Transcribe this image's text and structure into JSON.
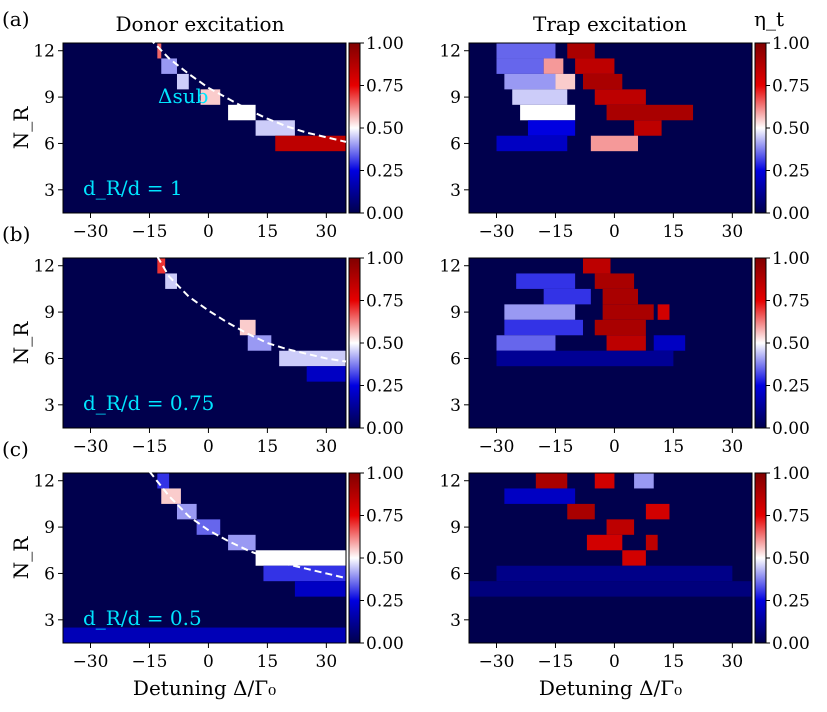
{
  "chart_data": {
    "type": "heatmap",
    "column_titles": [
      "Donor excitation",
      "Trap excitation"
    ],
    "xlabel": "Detuning Δ/Γ₀",
    "ylabel": "N_R",
    "colorbar_label": "η_t",
    "x_ticks": [
      -30,
      -15,
      0,
      15,
      30
    ],
    "xlim": [
      -37,
      35
    ],
    "y_ticks": [
      3,
      6,
      9,
      12
    ],
    "ylim": [
      1.5,
      12.5
    ],
    "colorbar": {
      "range": [
        0,
        1
      ],
      "ticks": [
        "0.00",
        "0.25",
        "0.50",
        "0.75",
        "1.00"
      ],
      "colormap": "seismic"
    },
    "curve_label": "Δsub",
    "panels": [
      {
        "label": "(a)",
        "condition": "d_R/d = 1",
        "donor": {
          "subradiant_curve": [
            [
              -15,
              12.8
            ],
            [
              -10,
              11.5
            ],
            [
              -5,
              10.5
            ],
            [
              0,
              9.6
            ],
            [
              5,
              8.9
            ],
            [
              10,
              8.2
            ],
            [
              15,
              7.6
            ],
            [
              20,
              7.1
            ],
            [
              25,
              6.7
            ],
            [
              30,
              6.4
            ],
            [
              35,
              6.1
            ]
          ],
          "features": [
            {
              "N": 12,
              "x0": -13,
              "x1": -12,
              "v": 0.65
            },
            {
              "N": 11,
              "x0": -12,
              "x1": -8,
              "v": 0.4
            },
            {
              "N": 10,
              "x0": -8,
              "x1": -5,
              "v": 0.45
            },
            {
              "N": 9,
              "x0": -2,
              "x1": 3,
              "v": 0.55
            },
            {
              "N": 8,
              "x0": 5,
              "x1": 12,
              "v": 0.5
            },
            {
              "N": 7,
              "x0": 12,
              "x1": 22,
              "v": 0.45
            },
            {
              "N": 6,
              "x0": 17,
              "x1": 35,
              "v": 0.85
            }
          ]
        },
        "trap": {
          "features": [
            {
              "N": 12,
              "x0": -30,
              "x1": -15,
              "v": 0.35
            },
            {
              "N": 12,
              "x0": -12,
              "x1": -5,
              "v": 0.9
            },
            {
              "N": 11,
              "x0": -30,
              "x1": -18,
              "v": 0.35
            },
            {
              "N": 11,
              "x0": -18,
              "x1": -13,
              "v": 0.6
            },
            {
              "N": 11,
              "x0": -10,
              "x1": 0,
              "v": 0.85
            },
            {
              "N": 10,
              "x0": -28,
              "x1": -15,
              "v": 0.4
            },
            {
              "N": 10,
              "x0": -15,
              "x1": -10,
              "v": 0.55
            },
            {
              "N": 10,
              "x0": -8,
              "x1": 2,
              "v": 0.9
            },
            {
              "N": 9,
              "x0": -26,
              "x1": -12,
              "v": 0.45
            },
            {
              "N": 9,
              "x0": -5,
              "x1": 8,
              "v": 0.85
            },
            {
              "N": 8,
              "x0": -24,
              "x1": -10,
              "v": 0.5
            },
            {
              "N": 8,
              "x0": -2,
              "x1": 20,
              "v": 0.9
            },
            {
              "N": 7,
              "x0": -22,
              "x1": -10,
              "v": 0.25
            },
            {
              "N": 7,
              "x0": 5,
              "x1": 12,
              "v": 0.85
            },
            {
              "N": 6,
              "x0": -30,
              "x1": -12,
              "v": 0.2
            },
            {
              "N": 6,
              "x0": -6,
              "x1": 6,
              "v": 0.6
            }
          ]
        }
      },
      {
        "label": "(b)",
        "condition": "d_R/d = 0.75",
        "donor": {
          "subradiant_curve": [
            [
              -13,
              12.6
            ],
            [
              -10,
              11.3
            ],
            [
              -5,
              10.0
            ],
            [
              0,
              9.1
            ],
            [
              5,
              8.3
            ],
            [
              10,
              7.6
            ],
            [
              15,
              7.0
            ],
            [
              20,
              6.6
            ],
            [
              25,
              6.3
            ],
            [
              30,
              6.0
            ],
            [
              35,
              5.8
            ]
          ],
          "features": [
            {
              "N": 12,
              "x0": -13,
              "x1": -11,
              "v": 0.7
            },
            {
              "N": 11,
              "x0": -11,
              "x1": -8,
              "v": 0.45
            },
            {
              "N": 8,
              "x0": 8,
              "x1": 12,
              "v": 0.55
            },
            {
              "N": 7,
              "x0": 10,
              "x1": 16,
              "v": 0.4
            },
            {
              "N": 6,
              "x0": 18,
              "x1": 35,
              "v": 0.45
            },
            {
              "N": 5,
              "x0": 25,
              "x1": 35,
              "v": 0.2
            }
          ]
        },
        "trap": {
          "features": [
            {
              "N": 12,
              "x0": -8,
              "x1": -1,
              "v": 0.85
            },
            {
              "N": 11,
              "x0": -25,
              "x1": -10,
              "v": 0.3
            },
            {
              "N": 11,
              "x0": -5,
              "x1": 5,
              "v": 0.9
            },
            {
              "N": 10,
              "x0": -18,
              "x1": -6,
              "v": 0.3
            },
            {
              "N": 10,
              "x0": -3,
              "x1": 6,
              "v": 0.9
            },
            {
              "N": 9,
              "x0": -28,
              "x1": -10,
              "v": 0.4
            },
            {
              "N": 9,
              "x0": -3,
              "x1": 10,
              "v": 0.9
            },
            {
              "N": 9,
              "x0": 11,
              "x1": 14,
              "v": 0.8
            },
            {
              "N": 8,
              "x0": -28,
              "x1": -8,
              "v": 0.3
            },
            {
              "N": 8,
              "x0": -5,
              "x1": 8,
              "v": 0.9
            },
            {
              "N": 7,
              "x0": -30,
              "x1": -15,
              "v": 0.35
            },
            {
              "N": 7,
              "x0": -2,
              "x1": 8,
              "v": 0.85
            },
            {
              "N": 7,
              "x0": 10,
              "x1": 18,
              "v": 0.2
            },
            {
              "N": 6,
              "x0": -30,
              "x1": 15,
              "v": 0.12
            }
          ]
        }
      },
      {
        "label": "(c)",
        "condition": "d_R/d = 0.5",
        "donor": {
          "subradiant_curve": [
            [
              -15,
              12.6
            ],
            [
              -10,
              11.0
            ],
            [
              -5,
              9.7
            ],
            [
              0,
              8.8
            ],
            [
              5,
              8.1
            ],
            [
              10,
              7.5
            ],
            [
              15,
              7.0
            ],
            [
              20,
              6.6
            ],
            [
              25,
              6.3
            ],
            [
              30,
              6.0
            ],
            [
              35,
              5.7
            ]
          ],
          "features": [
            {
              "N": 12,
              "x0": -13,
              "x1": -10,
              "v": 0.3
            },
            {
              "N": 11,
              "x0": -12,
              "x1": -7,
              "v": 0.55
            },
            {
              "N": 10,
              "x0": -8,
              "x1": -3,
              "v": 0.4
            },
            {
              "N": 9,
              "x0": -3,
              "x1": 3,
              "v": 0.35
            },
            {
              "N": 8,
              "x0": 5,
              "x1": 12,
              "v": 0.4
            },
            {
              "N": 7,
              "x0": 12,
              "x1": 35,
              "v": 0.5
            },
            {
              "N": 6,
              "x0": 14,
              "x1": 35,
              "v": 0.3
            },
            {
              "N": 5,
              "x0": 22,
              "x1": 35,
              "v": 0.2
            },
            {
              "N": 2,
              "x0": -37,
              "x1": 35,
              "v": 0.18
            }
          ]
        },
        "trap": {
          "features": [
            {
              "N": 12,
              "x0": -20,
              "x1": -12,
              "v": 0.9
            },
            {
              "N": 12,
              "x0": -5,
              "x1": 0,
              "v": 0.8
            },
            {
              "N": 12,
              "x0": 5,
              "x1": 10,
              "v": 0.4
            },
            {
              "N": 11,
              "x0": -28,
              "x1": -10,
              "v": 0.2
            },
            {
              "N": 10,
              "x0": -12,
              "x1": -5,
              "v": 0.9
            },
            {
              "N": 10,
              "x0": 8,
              "x1": 14,
              "v": 0.8
            },
            {
              "N": 9,
              "x0": -2,
              "x1": 5,
              "v": 0.85
            },
            {
              "N": 8,
              "x0": -7,
              "x1": 2,
              "v": 0.8
            },
            {
              "N": 8,
              "x0": 8,
              "x1": 11,
              "v": 0.85
            },
            {
              "N": 7,
              "x0": 2,
              "x1": 8,
              "v": 0.8
            },
            {
              "N": 6,
              "x0": -30,
              "x1": 30,
              "v": 0.1
            },
            {
              "N": 5,
              "x0": -37,
              "x1": 35,
              "v": 0.08
            }
          ]
        }
      }
    ]
  }
}
